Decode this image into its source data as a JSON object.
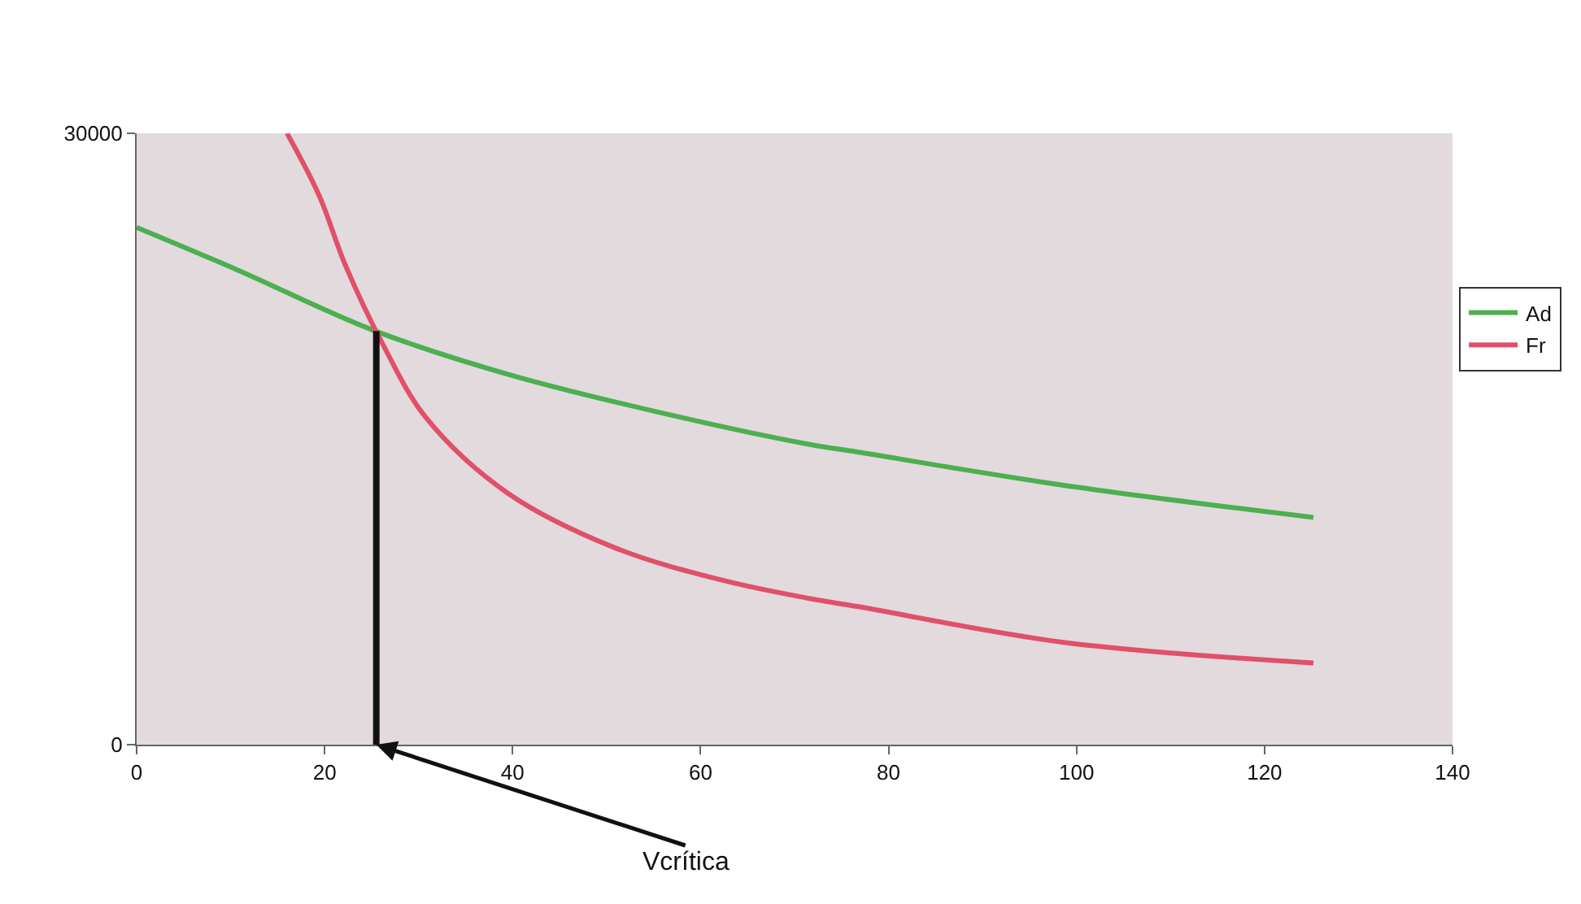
{
  "chart_data": {
    "type": "line",
    "series": [
      {
        "name": "Ad",
        "color": "#4caf50",
        "x": [
          0,
          10.8,
          25.1,
          39.4,
          56.6,
          71.5,
          76.7,
          98.5,
          125.2
        ],
        "values": [
          25380,
          23280,
          20350,
          18190,
          16200,
          14740,
          14360,
          12740,
          11150
        ]
      },
      {
        "name": "Fr",
        "color": "#e0506a",
        "x": [
          16,
          19.4,
          22.2,
          26.3,
          30.8,
          39.4,
          50.9,
          62.4,
          71.5,
          76.7,
          98.5,
          125.2
        ],
        "values": [
          30000,
          26970,
          23540,
          19550,
          16040,
          12370,
          9660,
          8060,
          7180,
          6780,
          5030,
          4010
        ]
      },
      {
        "color": "#111111",
        "x": [
          25.5,
          25.5
        ],
        "values": [
          0,
          20300
        ]
      }
    ],
    "xlim": [
      0,
      140
    ],
    "xticks": [
      0,
      20,
      40,
      60,
      80,
      100,
      120,
      140
    ],
    "ylim": [
      0,
      30000
    ],
    "yticks": [
      0,
      30000
    ],
    "annotations": [
      {
        "text": "Vcrítica",
        "x": 25.5,
        "y": 0
      }
    ],
    "grid": false,
    "legend": "right",
    "marker": "none",
    "line_style": "solid"
  }
}
